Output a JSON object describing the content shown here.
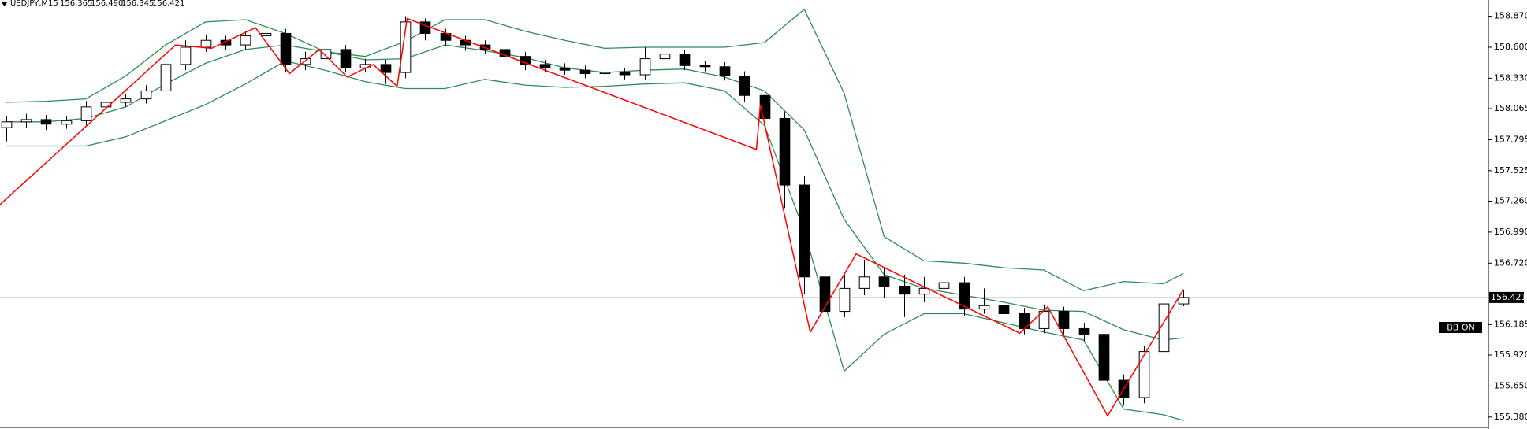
{
  "chart_data": {
    "type": "candlestick",
    "title": "USDJPY,M15",
    "quote": [
      "156.365",
      "156.490",
      "156.345",
      "156.421"
    ],
    "x": [
      0,
      1,
      2,
      3,
      4,
      5,
      6,
      7,
      8,
      9,
      10,
      11,
      12,
      13,
      14,
      15,
      16,
      17,
      18,
      19,
      20,
      21,
      22,
      23,
      24,
      25,
      26,
      27,
      28,
      29,
      30,
      31,
      32,
      33,
      34,
      35,
      36,
      37,
      38,
      39,
      40,
      41,
      42,
      43,
      44,
      45,
      46,
      47,
      48,
      49,
      50,
      51,
      52,
      53,
      54,
      55,
      56,
      57,
      58,
      59
    ],
    "open": [
      157.9,
      157.95,
      157.97,
      157.93,
      157.96,
      158.08,
      158.12,
      158.15,
      158.22,
      158.45,
      158.6,
      158.66,
      158.62,
      158.7,
      158.72,
      158.45,
      158.5,
      158.58,
      158.42,
      158.45,
      158.38,
      158.82,
      158.72,
      158.66,
      158.62,
      158.58,
      158.52,
      158.45,
      158.42,
      158.4,
      158.37,
      158.38,
      158.36,
      158.5,
      158.54,
      158.44,
      158.43,
      158.35,
      158.18,
      157.98,
      157.4,
      156.6,
      156.3,
      156.5,
      156.6,
      156.52,
      156.45,
      156.5,
      156.55,
      156.32,
      156.35,
      156.28,
      156.15,
      156.3,
      156.15,
      156.1,
      155.7,
      155.55,
      155.95,
      156.365
    ],
    "high": [
      158.0,
      158.02,
      158.01,
      158.0,
      158.13,
      158.17,
      158.19,
      158.27,
      158.52,
      158.66,
      158.71,
      158.7,
      158.74,
      158.78,
      158.76,
      158.56,
      158.63,
      158.62,
      158.5,
      158.49,
      158.87,
      158.85,
      158.76,
      158.7,
      158.66,
      158.62,
      158.56,
      158.49,
      158.46,
      158.44,
      158.42,
      158.42,
      158.6,
      158.6,
      158.58,
      158.48,
      158.47,
      158.39,
      158.24,
      158.04,
      157.48,
      156.7,
      156.62,
      156.75,
      156.68,
      156.62,
      156.6,
      156.62,
      156.6,
      156.5,
      156.4,
      156.33,
      156.36,
      156.34,
      156.2,
      156.14,
      155.75,
      156.0,
      156.42,
      156.49
    ],
    "low": [
      157.78,
      157.9,
      157.88,
      157.89,
      157.92,
      158.03,
      158.08,
      158.11,
      158.18,
      158.4,
      158.56,
      158.58,
      158.58,
      158.66,
      158.38,
      158.4,
      158.46,
      158.38,
      158.38,
      158.28,
      158.33,
      158.66,
      158.61,
      158.57,
      158.54,
      158.48,
      158.4,
      158.38,
      158.36,
      158.33,
      158.33,
      158.32,
      158.32,
      158.46,
      158.4,
      158.39,
      158.31,
      158.12,
      157.88,
      157.2,
      156.45,
      156.15,
      156.25,
      156.44,
      156.42,
      156.25,
      156.38,
      156.42,
      156.26,
      156.28,
      156.22,
      156.1,
      156.11,
      156.1,
      156.04,
      155.4,
      155.48,
      155.5,
      155.9,
      156.345
    ],
    "close": [
      157.95,
      157.97,
      157.93,
      157.96,
      158.08,
      158.12,
      158.15,
      158.22,
      158.45,
      158.6,
      158.66,
      158.62,
      158.7,
      158.72,
      158.45,
      158.5,
      158.58,
      158.42,
      158.45,
      158.38,
      158.82,
      158.72,
      158.66,
      158.62,
      158.58,
      158.52,
      158.45,
      158.42,
      158.4,
      158.37,
      158.38,
      158.36,
      158.5,
      158.54,
      158.44,
      158.43,
      158.35,
      158.18,
      157.98,
      157.4,
      156.6,
      156.3,
      156.5,
      156.6,
      156.52,
      156.45,
      156.5,
      156.55,
      156.32,
      156.35,
      156.28,
      156.15,
      156.3,
      156.15,
      156.1,
      155.7,
      155.55,
      155.95,
      156.365,
      156.421
    ],
    "bands": [
      {
        "color": "#2e8b57",
        "x": [
          0,
          2,
          4,
          6,
          8,
          10,
          12,
          14,
          16,
          18,
          20,
          22,
          24,
          26,
          28,
          30,
          32,
          34,
          36,
          38,
          40,
          42,
          44,
          46,
          48,
          50,
          52,
          54,
          56,
          58,
          59
        ],
        "values": [
          158.12,
          158.13,
          158.15,
          158.35,
          158.62,
          158.82,
          158.84,
          158.72,
          158.56,
          158.52,
          158.65,
          158.84,
          158.84,
          158.74,
          158.66,
          158.59,
          158.6,
          158.6,
          158.6,
          158.64,
          158.93,
          158.2,
          156.95,
          156.74,
          156.72,
          156.68,
          156.66,
          156.48,
          156.56,
          156.54,
          156.63
        ]
      },
      {
        "color": "#2e8b57",
        "x": [
          0,
          2,
          4,
          6,
          8,
          10,
          12,
          14,
          16,
          18,
          20,
          22,
          24,
          26,
          28,
          30,
          32,
          34,
          36,
          38,
          40,
          42,
          44,
          46,
          48,
          50,
          52,
          54,
          56,
          58,
          59
        ],
        "values": [
          157.95,
          157.95,
          157.98,
          158.08,
          158.28,
          158.46,
          158.58,
          158.62,
          158.56,
          158.49,
          158.5,
          158.62,
          158.57,
          158.51,
          158.42,
          158.38,
          158.4,
          158.41,
          158.34,
          158.22,
          157.88,
          157.1,
          156.62,
          156.5,
          156.44,
          156.38,
          156.31,
          156.3,
          156.14,
          156.05,
          156.07
        ]
      },
      {
        "color": "#2e8b57",
        "x": [
          0,
          2,
          4,
          6,
          8,
          10,
          12,
          14,
          16,
          18,
          20,
          22,
          24,
          26,
          28,
          30,
          32,
          34,
          36,
          38,
          40,
          42,
          44,
          46,
          48,
          50,
          52,
          54,
          56,
          58,
          59
        ],
        "values": [
          157.74,
          157.74,
          157.74,
          157.82,
          157.96,
          158.1,
          158.28,
          158.48,
          158.4,
          158.3,
          158.24,
          158.24,
          158.32,
          158.27,
          158.25,
          158.26,
          158.28,
          158.29,
          158.22,
          157.92,
          157.0,
          155.78,
          156.1,
          156.28,
          156.28,
          156.2,
          156.12,
          156.05,
          155.45,
          155.4,
          155.35
        ]
      }
    ],
    "zigzag": {
      "color": "#ff0000",
      "x": [
        -0.3,
        8.5,
        10.3,
        12.5,
        14.2,
        15.7,
        17.1,
        18.4,
        19.6,
        20.1,
        37.6,
        37.8,
        40.3,
        42.6,
        50.8,
        52.2,
        55.2,
        59
      ],
      "values": [
        157.23,
        158.62,
        158.59,
        158.77,
        158.37,
        158.58,
        158.34,
        158.45,
        158.26,
        158.85,
        157.71,
        158.1,
        156.12,
        156.8,
        156.11,
        156.34,
        155.39,
        156.49
      ]
    },
    "xlim": [
      -0.3,
      74.2
    ],
    "ylim": [
      155.31,
      158.97
    ],
    "yticks": [
      {
        "value": 158.87,
        "label": "158.870"
      },
      {
        "value": 158.6,
        "label": "158.600"
      },
      {
        "value": 158.33,
        "label": "158.330"
      },
      158.065,
      157.795,
      157.525,
      {
        "value": 157.26,
        "label": "157.260"
      },
      {
        "value": 156.99,
        "label": "156.990"
      },
      {
        "value": 156.72,
        "label": "156.720"
      },
      156.185,
      {
        "value": 155.92,
        "label": "155.920"
      },
      {
        "value": 155.65,
        "label": "155.650"
      },
      {
        "value": 155.38,
        "label": "155.380"
      }
    ],
    "current_price": 156.421,
    "indicator_label": "BB ON"
  }
}
